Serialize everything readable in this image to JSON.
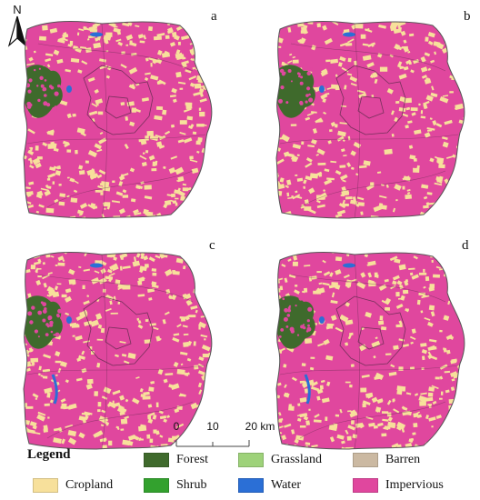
{
  "north_label": "N",
  "panels": [
    {
      "label": "a"
    },
    {
      "label": "b"
    },
    {
      "label": "c"
    },
    {
      "label": "d"
    }
  ],
  "scale_bar": {
    "ticks": [
      "0",
      "10",
      "20 km"
    ]
  },
  "legend": {
    "title": "Legend",
    "items": [
      {
        "label": "Forest",
        "color": "#3f6a2c"
      },
      {
        "label": "Grassland",
        "color": "#9ed27a"
      },
      {
        "label": "Barren",
        "color": "#cbb9a2"
      },
      {
        "label": "Cropland",
        "color": "#f7e09b"
      },
      {
        "label": "Shrub",
        "color": "#33a12e"
      },
      {
        "label": "Water",
        "color": "#2b6fd6"
      },
      {
        "label": "Impervious",
        "color": "#e0479e"
      }
    ]
  },
  "colors": {
    "cropland": "#f7e09b",
    "impervious": "#e0479e",
    "forest": "#3f6a2c",
    "water": "#2b6fd6",
    "boundary": "#5a2a4a"
  }
}
